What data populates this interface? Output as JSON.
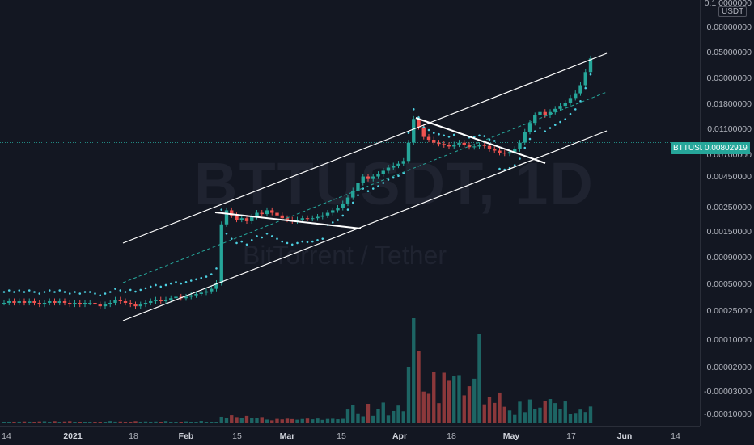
{
  "symbol": "BTTUSDT",
  "watermark_symbol": "BTTUSDT, 1D",
  "watermark_description": "BitTorrent / Tether",
  "currency": "USDT",
  "current_price_tag": "BTTUSDT",
  "current_price": "0.00802919",
  "price_axis_labels": [
    "0.1 0000000",
    "0.08000000",
    "0.05000000",
    "0.03000000",
    "0.01800000",
    "0.01100000",
    "0.00700000",
    "0.00450000",
    "0.00250000",
    "0.00150000",
    "0.00090000",
    "0.00050000",
    "0.00025000",
    "0.00010000",
    "0.00002000",
    "-0.00003000",
    "-0.00010000"
  ],
  "time_axis_labels": [
    "14",
    "2021",
    "18",
    "Feb",
    "15",
    "Mar",
    "15",
    "Apr",
    "18",
    "May",
    "17",
    "Jun",
    "14"
  ],
  "colors": {
    "up": "#26a69a",
    "down": "#ef5350",
    "psar": "#4dd0e1",
    "channel": "#ffffff",
    "background": "#131722"
  },
  "chart_data": {
    "type": "candlestick",
    "scale": "log",
    "symbol": "BTTUSDT",
    "interval": "1D",
    "price_ylim": [
      0.00025,
      0.1
    ],
    "last_price": 0.00802919,
    "ohlc_series_description": "daily candles Dec 2020 – May 2021",
    "closes": [
      0.0003,
      0.00031,
      0.0003,
      0.00031,
      0.0003,
      0.00031,
      0.0003,
      0.00029,
      0.0003,
      0.00031,
      0.0003,
      0.00031,
      0.0003,
      0.00029,
      0.0003,
      0.00029,
      0.0003,
      0.0003,
      0.00029,
      0.00028,
      0.00029,
      0.0003,
      0.00032,
      0.00031,
      0.0003,
      0.00029,
      0.00028,
      0.00029,
      0.0003,
      0.00031,
      0.00032,
      0.00031,
      0.00032,
      0.00033,
      0.00034,
      0.00033,
      0.00034,
      0.00035,
      0.00036,
      0.00037,
      0.00038,
      0.0004,
      0.00045,
      0.0015,
      0.002,
      0.0018,
      0.00165,
      0.0017,
      0.0016,
      0.00175,
      0.0019,
      0.00185,
      0.002,
      0.0019,
      0.0018,
      0.0017,
      0.00165,
      0.0016,
      0.00165,
      0.0017,
      0.00168,
      0.0017,
      0.00175,
      0.0018,
      0.0019,
      0.002,
      0.0021,
      0.0023,
      0.0026,
      0.003,
      0.0035,
      0.004,
      0.0038,
      0.004,
      0.0042,
      0.0045,
      0.0048,
      0.005,
      0.0052,
      0.0055,
      0.008,
      0.013,
      0.011,
      0.009,
      0.0085,
      0.008,
      0.0078,
      0.0076,
      0.0074,
      0.0077,
      0.008,
      0.0076,
      0.0073,
      0.0074,
      0.0076,
      0.0075,
      0.007,
      0.0068,
      0.0065,
      0.0064,
      0.0066,
      0.007,
      0.008,
      0.01,
      0.012,
      0.014,
      0.015,
      0.014,
      0.015,
      0.016,
      0.017,
      0.018,
      0.02,
      0.022,
      0.026,
      0.034,
      0.045
    ],
    "indicators": [
      "Parabolic SAR",
      "Volume"
    ],
    "drawings": [
      "ascending channel upper line",
      "ascending channel lower line",
      "channel midline (dashed)",
      "falling trendline Feb",
      "falling trendline Apr"
    ]
  }
}
